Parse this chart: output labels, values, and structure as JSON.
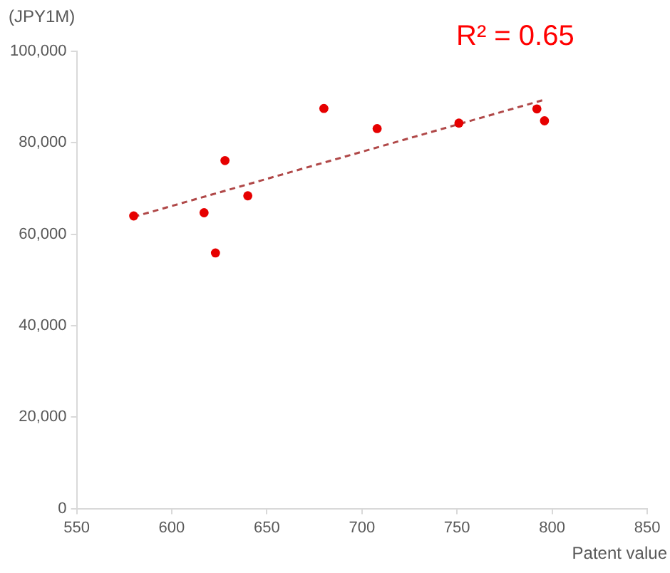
{
  "chart_data": {
    "type": "scatter",
    "ylabel": "(JPY1M)",
    "xlabel": "Patent value",
    "annotations": [
      "R² = 0.65"
    ],
    "xlim": [
      550,
      850
    ],
    "xticks": [
      550,
      600,
      650,
      700,
      750,
      800,
      850
    ],
    "ylim": [
      0,
      100000
    ],
    "yticks": [
      {
        "value": 0,
        "label": "0"
      },
      {
        "value": 20000,
        "label": "20,000"
      },
      {
        "value": 40000,
        "label": "40,000"
      },
      {
        "value": 60000,
        "label": "60,000"
      },
      {
        "value": 80000,
        "label": "80,000"
      },
      {
        "value": 100000,
        "label": "100,000"
      }
    ],
    "grid": false,
    "legend": false,
    "marker": "circle",
    "series": [
      {
        "color": "#e60000",
        "x": [
          580,
          617,
          623,
          628,
          640,
          680,
          708,
          751,
          792,
          796
        ],
        "values": [
          64000,
          64700,
          55900,
          76100,
          68400,
          87500,
          83100,
          84300,
          87400,
          84800
        ]
      },
      {
        "type": "line",
        "color": "#b04848",
        "line_style": "dashed",
        "marker": "none",
        "x": [
          580,
          795
        ],
        "values": [
          63800,
          89300
        ]
      }
    ]
  }
}
